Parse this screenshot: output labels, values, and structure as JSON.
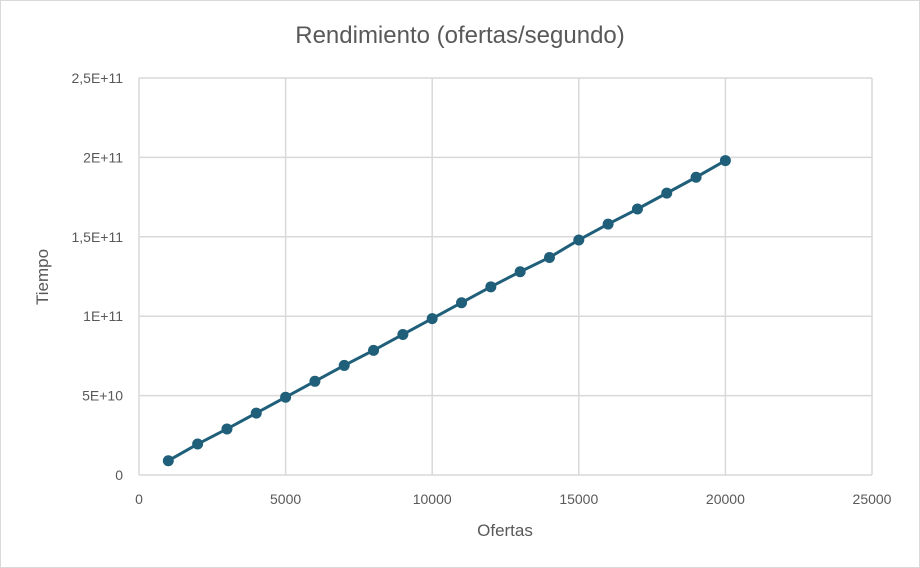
{
  "chart_data": {
    "type": "line",
    "title": "Rendimiento (ofertas/segundo)",
    "xlabel": "Ofertas",
    "ylabel": "Tiempo",
    "xlim": [
      0,
      25000
    ],
    "ylim": [
      0,
      250000000000
    ],
    "x_ticks": [
      "0",
      "5000",
      "10000",
      "15000",
      "20000",
      "25000"
    ],
    "y_ticks": [
      "0",
      "5E+10",
      "1E+11",
      "1,5E+11",
      "2E+11",
      "2,5E+11"
    ],
    "grid": true,
    "legend": "none",
    "colors": {
      "series": "#1f5f7a",
      "grid": "#d9d9d9",
      "text": "#595959"
    },
    "series": [
      {
        "x": [
          1000,
          2000,
          3000,
          4000,
          5000,
          6000,
          7000,
          8000,
          9000,
          10000,
          11000,
          12000,
          13000,
          14000,
          15000,
          16000,
          17000,
          18000,
          19000,
          20000
        ],
        "y": [
          9000000000,
          19500000000,
          29000000000,
          39000000000,
          49000000000,
          59000000000,
          69000000000,
          78500000000,
          88500000000,
          98500000000,
          108500000000,
          118500000000,
          128000000000,
          137000000000,
          148000000000,
          158000000000,
          167500000000,
          177500000000,
          187500000000,
          198000000000
        ]
      }
    ]
  }
}
